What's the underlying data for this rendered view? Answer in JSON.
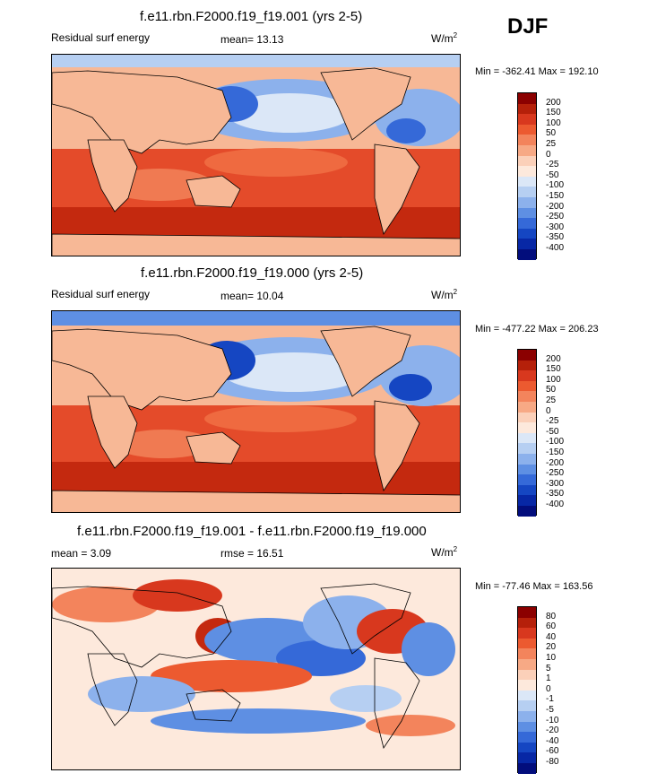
{
  "season": "DJF",
  "panels": [
    {
      "title": "f.e11.rbn.F2000.f19_f19.001 (yrs 2-5)",
      "left_label": "Residual surf energy",
      "mean_label": "mean=  13.13",
      "units": "W/m",
      "units_sup": "2",
      "minmax": "Min = -362.41 Max = 192.10",
      "colorbar_levels": [
        "200",
        "150",
        "100",
        "50",
        "25",
        "0",
        "-25",
        "-50",
        "-100",
        "-150",
        "-200",
        "-250",
        "-300",
        "-350",
        "-400"
      ],
      "colorbar_colors": [
        "#8b0000",
        "#b5200a",
        "#d8381e",
        "#ec5a30",
        "#f3845c",
        "#f7a985",
        "#fbd0b9",
        "#fde9dc",
        "#dbe7f7",
        "#b6cff2",
        "#8cb1ec",
        "#5e8fe3",
        "#3569d8",
        "#1546c2",
        "#0727a5",
        "#020d7c"
      ]
    },
    {
      "title": "f.e11.rbn.F2000.f19_f19.000 (yrs 2-5)",
      "left_label": "Residual surf energy",
      "mean_label": "mean=  10.04",
      "units": "W/m",
      "units_sup": "2",
      "minmax": "Min = -477.22 Max = 206.23",
      "colorbar_levels": [
        "200",
        "150",
        "100",
        "50",
        "25",
        "0",
        "-25",
        "-50",
        "-100",
        "-150",
        "-200",
        "-250",
        "-300",
        "-350",
        "-400"
      ],
      "colorbar_colors": [
        "#8b0000",
        "#b5200a",
        "#d8381e",
        "#ec5a30",
        "#f3845c",
        "#f7a985",
        "#fbd0b9",
        "#fde9dc",
        "#dbe7f7",
        "#b6cff2",
        "#8cb1ec",
        "#5e8fe3",
        "#3569d8",
        "#1546c2",
        "#0727a5",
        "#020d7c"
      ]
    },
    {
      "title": "f.e11.rbn.F2000.f19_f19.001 - f.e11.rbn.F2000.f19_f19.000",
      "left_label": "mean =   3.09",
      "mean_label": "rmse =  16.51",
      "units": "W/m",
      "units_sup": "2",
      "minmax": "Min = -77.46 Max = 163.56",
      "colorbar_levels": [
        "80",
        "60",
        "40",
        "20",
        "10",
        "5",
        "1",
        "0",
        "-1",
        "-5",
        "-10",
        "-20",
        "-40",
        "-60",
        "-80"
      ],
      "colorbar_colors": [
        "#8b0000",
        "#b5200a",
        "#d8381e",
        "#ec5a30",
        "#f3845c",
        "#f7a985",
        "#fbd0b9",
        "#fde9dc",
        "#dbe7f7",
        "#b6cff2",
        "#8cb1ec",
        "#5e8fe3",
        "#3569d8",
        "#1546c2",
        "#0727a5",
        "#020d7c"
      ]
    }
  ],
  "chart_data": [
    {
      "type": "heatmap",
      "title": "f.e11.rbn.F2000.f19_f19.001 (yrs 2-5)",
      "variable": "Residual surf energy",
      "units": "W/m2",
      "mean": 13.13,
      "min": -362.41,
      "max": 192.1,
      "levels": [
        200,
        150,
        100,
        50,
        25,
        0,
        -25,
        -50,
        -100,
        -150,
        -200,
        -250,
        -300,
        -350,
        -400
      ]
    },
    {
      "type": "heatmap",
      "title": "f.e11.rbn.F2000.f19_f19.000 (yrs 2-5)",
      "variable": "Residual surf energy",
      "units": "W/m2",
      "mean": 10.04,
      "min": -477.22,
      "max": 206.23,
      "levels": [
        200,
        150,
        100,
        50,
        25,
        0,
        -25,
        -50,
        -100,
        -150,
        -200,
        -250,
        -300,
        -350,
        -400
      ]
    },
    {
      "type": "heatmap",
      "title": "f.e11.rbn.F2000.f19_f19.001 - f.e11.rbn.F2000.f19_f19.000",
      "units": "W/m2",
      "mean": 3.09,
      "rmse": 16.51,
      "min": -77.46,
      "max": 163.56,
      "levels": [
        80,
        60,
        40,
        20,
        10,
        5,
        1,
        0,
        -1,
        -5,
        -10,
        -20,
        -40,
        -60,
        -80
      ]
    }
  ]
}
